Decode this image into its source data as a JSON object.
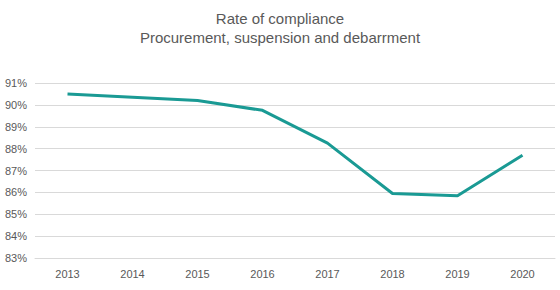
{
  "chart_data": {
    "type": "line",
    "title": "Rate of compliance",
    "subtitle": "Procurement, suspension and debarrment",
    "categories": [
      "2013",
      "2014",
      "2015",
      "2016",
      "2017",
      "2018",
      "2019",
      "2020"
    ],
    "values": [
      90.5,
      90.35,
      90.2,
      89.75,
      88.25,
      85.95,
      85.85,
      87.7
    ],
    "color": "#1a9a94",
    "ylim": [
      83,
      91
    ],
    "yticks": [
      {
        "value": 83,
        "label": "83%"
      },
      {
        "value": 84,
        "label": "84%"
      },
      {
        "value": 85,
        "label": "85%"
      },
      {
        "value": 86,
        "label": "86%"
      },
      {
        "value": 87,
        "label": "87%"
      },
      {
        "value": 88,
        "label": "88%"
      },
      {
        "value": 89,
        "label": "89%"
      },
      {
        "value": 90,
        "label": "90%"
      },
      {
        "value": 91,
        "label": "91%"
      }
    ],
    "grid": true
  }
}
